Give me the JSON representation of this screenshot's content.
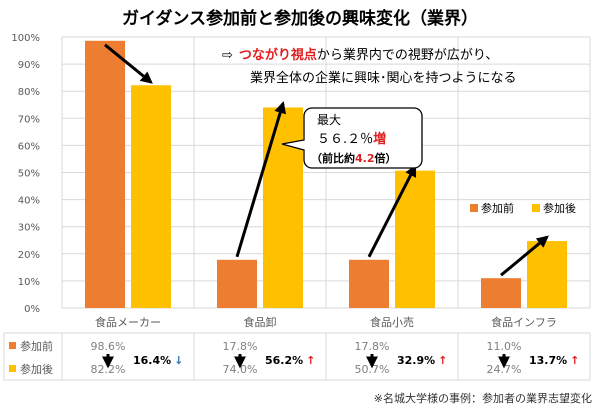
{
  "chart_data": {
    "type": "bar",
    "title": "ガイダンス参加前と参加後の興味変化（業界）",
    "categories": [
      "食品メーカー",
      "食品卸",
      "食品小売",
      "食品インフラ"
    ],
    "series": [
      {
        "name": "参加前",
        "values": [
          98.6,
          17.8,
          17.8,
          11.0
        ],
        "labels": [
          "98.6%",
          "17.8%",
          "17.8%",
          "11.0%"
        ],
        "color": "#ED7D31"
      },
      {
        "name": "参加後",
        "values": [
          82.2,
          74.0,
          50.7,
          24.7
        ],
        "labels": [
          "82.2%",
          "74.0%",
          "50.7%",
          "24.7%"
        ],
        "color": "#FFC000"
      }
    ],
    "changes": [
      {
        "text": "16.4%",
        "arrow": "↓",
        "color": "#2E75B6"
      },
      {
        "text": "56.2%",
        "arrow": "↑",
        "color": "#E02020"
      },
      {
        "text": "32.9%",
        "arrow": "↑",
        "color": "#E02020"
      },
      {
        "text": "13.7%",
        "arrow": "↑",
        "color": "#E02020"
      }
    ],
    "yticks": [
      "0%",
      "10%",
      "20%",
      "30%",
      "40%",
      "50%",
      "60%",
      "70%",
      "80%",
      "90%",
      "100%"
    ],
    "ylim": [
      0,
      100
    ],
    "grid": true,
    "legend": "right",
    "annotation_lines": {
      "arrow_glyph": "⇨",
      "line1_red": "つながり視点",
      "line1_rest": "から業界内での視野が広がり、",
      "line2": "業界全体の企業に興味･関心を持つようになる"
    },
    "callout": {
      "l1": "最大",
      "l2a": "５６.２％",
      "l2b": "増",
      "l3a": "（前比約",
      "l3b": "4.2",
      "l3c": "倍）"
    },
    "footnote": "※名城大学様の事例：参加者の業界志望変化"
  }
}
